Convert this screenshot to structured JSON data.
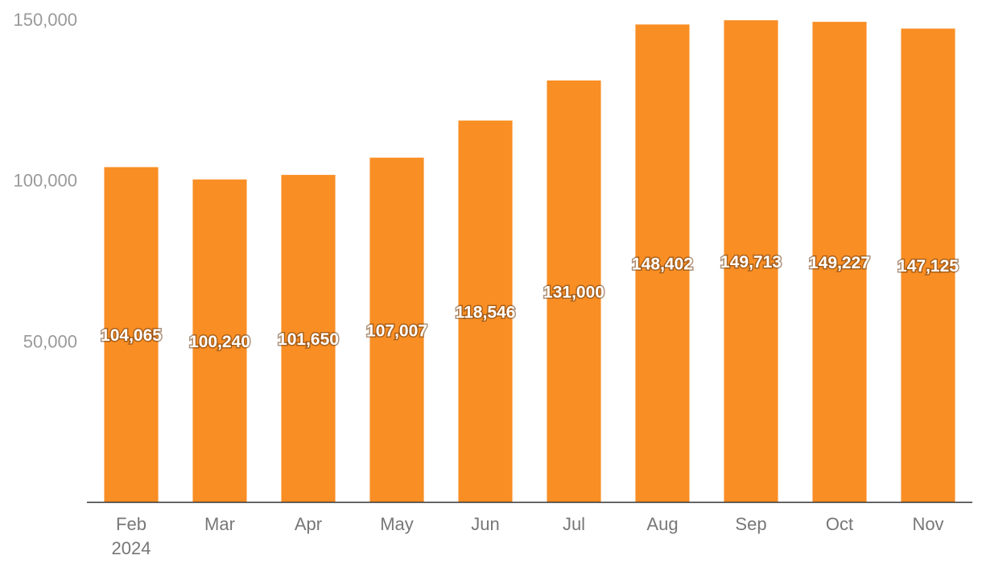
{
  "chart_data": {
    "type": "bar",
    "categories": [
      "Feb",
      "Mar",
      "Apr",
      "May",
      "Jun",
      "Jul",
      "Aug",
      "Sep",
      "Oct",
      "Nov"
    ],
    "category_sublabels": [
      "2024",
      "",
      "",
      "",
      "",
      "",
      "",
      "",
      "",
      ""
    ],
    "values": [
      104065,
      100240,
      101650,
      107007,
      118546,
      131000,
      148402,
      149713,
      149227,
      147125
    ],
    "data_labels": [
      "104,065",
      "100,240",
      "101,650",
      "107,007",
      "118,546",
      "131,000",
      "148,402",
      "149,713",
      "149,227",
      "147,125"
    ],
    "yticks": [
      50000,
      100000,
      150000
    ],
    "ytick_labels": [
      "50,000",
      "100,000",
      "150,000"
    ],
    "ylim": [
      0,
      150000
    ],
    "grid": false,
    "legend": "none",
    "title": "",
    "xlabel": "",
    "ylabel": "",
    "colors": {
      "bar": "#F98E24",
      "axis": "#333333"
    }
  }
}
